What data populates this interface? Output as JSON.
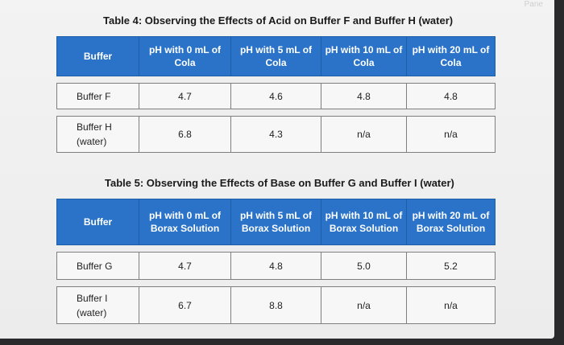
{
  "corner_text": "Pane",
  "table4": {
    "caption": "Table 4: Observing the Effects of Acid on Buffer F and Buffer H (water)",
    "headers": [
      "Buffer",
      "pH with 0 mL of Cola",
      "pH with 5 mL of Cola",
      "pH with 10 mL of Cola",
      "pH with 20 mL of Cola"
    ],
    "rows": [
      {
        "buffer": "Buffer F",
        "values": [
          "4.7",
          "4.6",
          "4.8",
          "4.8"
        ]
      },
      {
        "buffer": "Buffer H (water)",
        "values": [
          "6.8",
          "4.3",
          "n/a",
          "n/a"
        ]
      }
    ]
  },
  "table5": {
    "caption": "Table 5: Observing the Effects of Base on Buffer G and Buffer I (water)",
    "headers": [
      "Buffer",
      "pH with 0 mL of Borax Solution",
      "pH with 5 mL of Borax Solution",
      "pH with 10 mL of Borax Solution",
      "pH with 20 mL of Borax Solution"
    ],
    "rows": [
      {
        "buffer": "Buffer G",
        "values": [
          "4.7",
          "4.8",
          "5.0",
          "5.2"
        ]
      },
      {
        "buffer": "Buffer I (water)",
        "values": [
          "6.7",
          "8.8",
          "n/a",
          "n/a"
        ]
      }
    ]
  }
}
